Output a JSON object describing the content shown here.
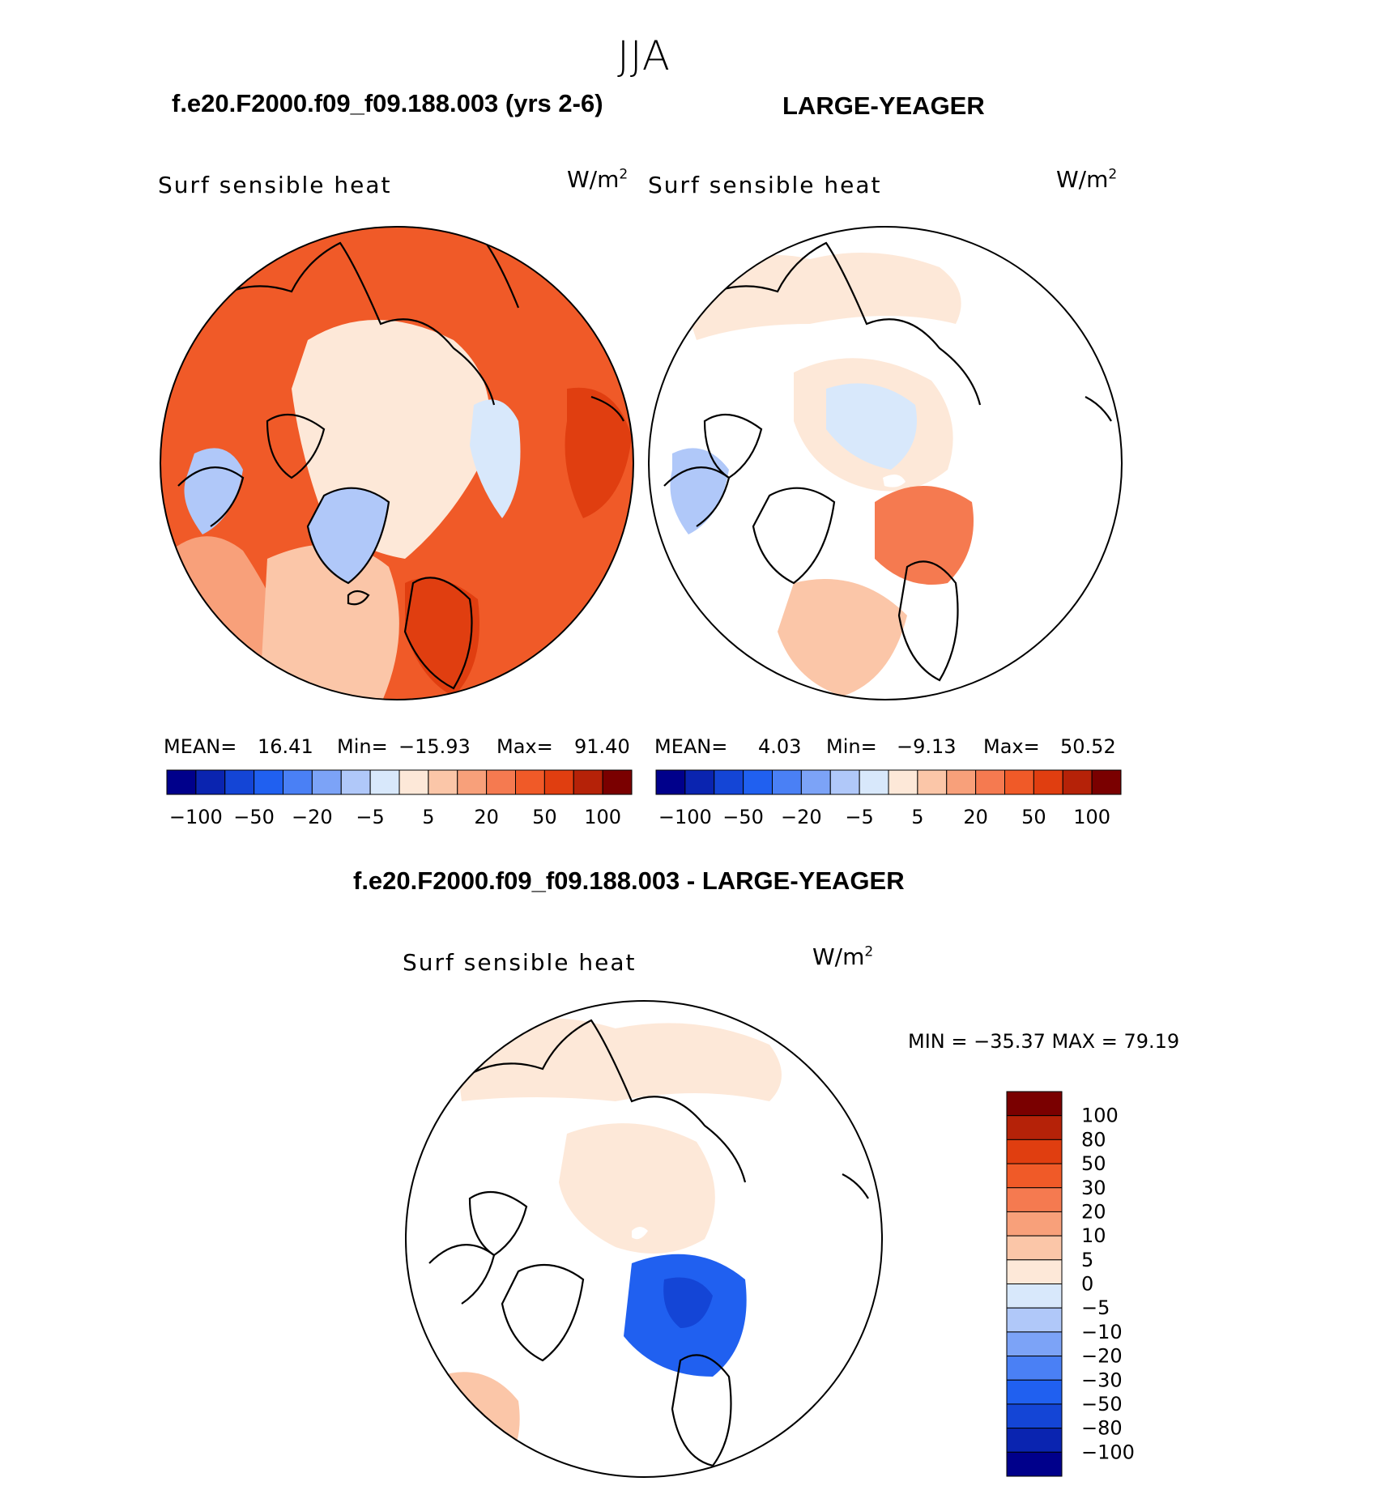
{
  "season": "JJA",
  "panels": [
    {
      "case_title": "f.e20.F2000.f09_f09.188.003 (yrs 2-6)",
      "variable": "Surf sensible heat",
      "units_base": "W/m",
      "units_exp": "2",
      "stats": [
        {
          "label": "MEAN=",
          "value": "16.41"
        },
        {
          "label": "Min=",
          "value": "−15.93"
        },
        {
          "label": "Max=",
          "value": "91.40"
        }
      ]
    },
    {
      "case_title": "LARGE-YEAGER",
      "variable": "Surf sensible heat",
      "units_base": "W/m",
      "units_exp": "2",
      "stats": [
        {
          "label": "MEAN=",
          "value": "4.03"
        },
        {
          "label": "Min=",
          "value": "−9.13"
        },
        {
          "label": "Max=",
          "value": "50.52"
        }
      ]
    },
    {
      "case_title": "f.e20.F2000.f09_f09.188.003 - LARGE-YEAGER",
      "variable": "Surf sensible heat",
      "units_base": "W/m",
      "units_exp": "2",
      "minmax_text": "MIN = −35.37  MAX =   79.19"
    }
  ],
  "colors": {
    "mean_scale": [
      "#00008b",
      "#0a24b0",
      "#1445d6",
      "#2060f0",
      "#4a80f5",
      "#7ca3f7",
      "#b0c8f9",
      "#d8e8fb",
      "#fde8d8",
      "#fbc6a8",
      "#f8a07a",
      "#f57a50",
      "#f05a28",
      "#e03e10",
      "#b52208",
      "#7a0000"
    ],
    "diff_scale": [
      "#00008b",
      "#0a24b0",
      "#1445d6",
      "#2060f0",
      "#4a80f5",
      "#7ca3f7",
      "#b0c8f9",
      "#d8e8fb",
      "#fde8d8",
      "#fbc6a8",
      "#f8a07a",
      "#f57a50",
      "#f05a28",
      "#e03e10",
      "#b52208",
      "#7a0000"
    ],
    "land_line": "#000000",
    "background": "#ffffff"
  },
  "chart_data": [
    {
      "type": "heatmap",
      "title": "f.e20.F2000.f09_f09.188.003 (yrs 2-6)",
      "variable": "Surf sensible heat",
      "units": "W/m2",
      "projection": "north polar stereographic",
      "stats": {
        "mean": 16.41,
        "min": -15.93,
        "max": 91.4
      },
      "colorbar_levels": [
        -100,
        -75,
        -50,
        -30,
        -20,
        -10,
        -5,
        0,
        5,
        10,
        20,
        30,
        50,
        75,
        100
      ],
      "colorbar_tick_labels": [
        "−100",
        "−50",
        "−20",
        "−5",
        "5",
        "20",
        "50",
        "100"
      ]
    },
    {
      "type": "heatmap",
      "title": "LARGE-YEAGER",
      "variable": "Surf sensible heat",
      "units": "W/m2",
      "projection": "north polar stereographic",
      "stats": {
        "mean": 4.03,
        "min": -9.13,
        "max": 50.52
      },
      "colorbar_levels": [
        -100,
        -75,
        -50,
        -30,
        -20,
        -10,
        -5,
        0,
        5,
        10,
        20,
        30,
        50,
        75,
        100
      ],
      "colorbar_tick_labels": [
        "−100",
        "−50",
        "−20",
        "−5",
        "5",
        "20",
        "50",
        "100"
      ]
    },
    {
      "type": "heatmap",
      "title": "f.e20.F2000.f09_f09.188.003 - LARGE-YEAGER",
      "variable": "Surf sensible heat",
      "units": "W/m2",
      "projection": "north polar stereographic",
      "stats": {
        "min": -35.37,
        "max": 79.19
      },
      "colorbar_levels": [
        -100,
        -80,
        -50,
        -30,
        -20,
        -10,
        -5,
        0,
        5,
        10,
        20,
        30,
        50,
        80,
        100
      ],
      "colorbar_tick_labels": [
        "100",
        "80",
        "50",
        "30",
        "20",
        "10",
        "5",
        "0",
        "−5",
        "−10",
        "−20",
        "−30",
        "−50",
        "−80",
        "−100"
      ]
    }
  ]
}
